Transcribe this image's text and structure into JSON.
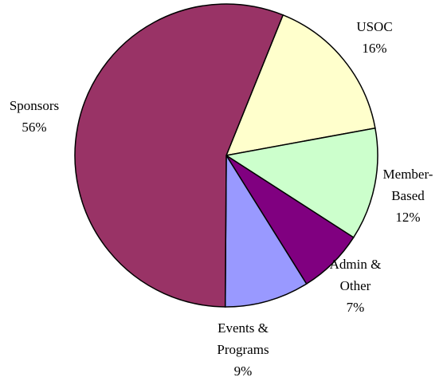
{
  "chart_data": {
    "type": "pie",
    "categories": [
      "USOC",
      "Member-Based",
      "Admin & Other",
      "Events & Programs",
      "Sponsors"
    ],
    "values": [
      16,
      12,
      7,
      9,
      56
    ],
    "value_labels": [
      "16%",
      "12%",
      "7%",
      "9%",
      "56%"
    ],
    "colors": [
      "#ffffcc",
      "#ccffcc",
      "#800080",
      "#9999ff",
      "#993366"
    ]
  }
}
